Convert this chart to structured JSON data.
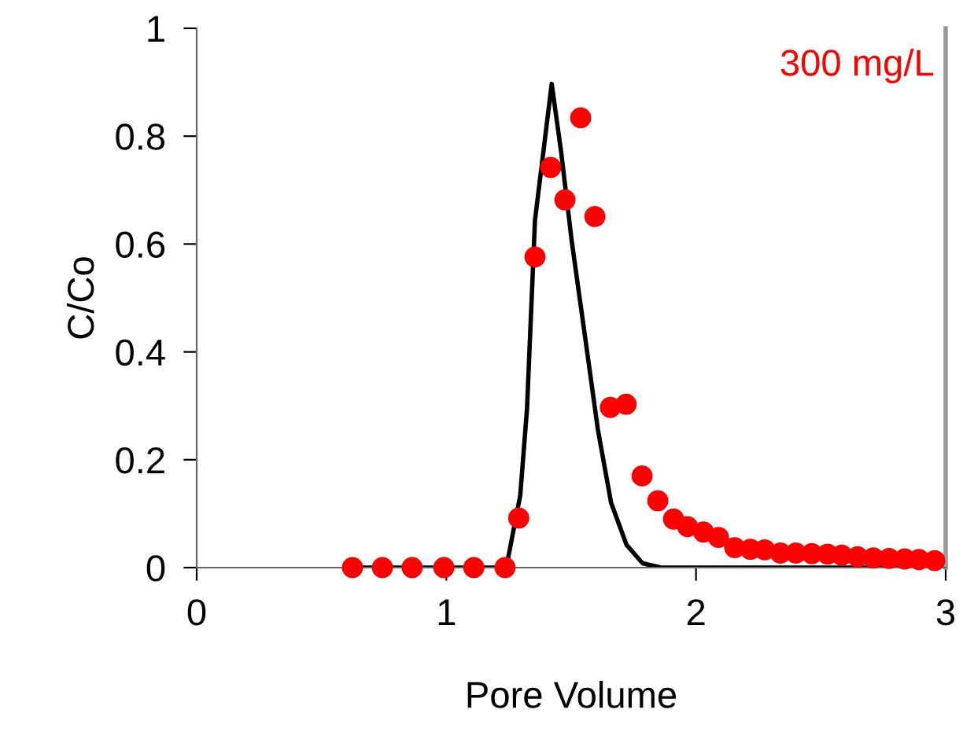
{
  "chart_data": {
    "type": "scatter",
    "xlabel": "Pore Volume",
    "ylabel": "C/Co",
    "annotations": [
      "300 mg/L"
    ],
    "xlim": [
      0,
      3
    ],
    "ylim": [
      0,
      1
    ],
    "xticks": [
      0,
      1,
      2,
      3
    ],
    "yticks": [
      0,
      0.2,
      0.4,
      0.6,
      0.8,
      1
    ],
    "grid": false,
    "legend": false,
    "series": [
      {
        "type": "line",
        "color": "#000000",
        "marker": "none",
        "line_style": "solid",
        "x": [
          0.62,
          1.24,
          1.296,
          1.323,
          1.355,
          1.422,
          1.46,
          1.502,
          1.555,
          1.607,
          1.66,
          1.722,
          1.786,
          1.86,
          2.0,
          2.5,
          3.0
        ],
        "values": [
          0,
          0,
          0.134,
          0.294,
          0.644,
          0.897,
          0.77,
          0.606,
          0.43,
          0.256,
          0.12,
          0.042,
          0.008,
          0,
          0,
          0,
          0
        ]
      },
      {
        "color": "#ff0000",
        "marker": "circle",
        "x": [
          0.624,
          0.744,
          0.863,
          0.99,
          1.11,
          1.235,
          1.29,
          1.355,
          1.418,
          1.475,
          1.538,
          1.595,
          1.657,
          1.72,
          1.784,
          1.847,
          1.91,
          1.966,
          2.03,
          2.09,
          2.155,
          2.218,
          2.275,
          2.338,
          2.4,
          2.464,
          2.527,
          2.584,
          2.647,
          2.71,
          2.773,
          2.836,
          2.893,
          2.956
        ],
        "values": [
          0,
          0,
          0,
          0,
          0,
          0,
          0.092,
          0.576,
          0.742,
          0.682,
          0.834,
          0.651,
          0.297,
          0.303,
          0.17,
          0.124,
          0.09,
          0.076,
          0.066,
          0.056,
          0.037,
          0.034,
          0.033,
          0.027,
          0.027,
          0.026,
          0.025,
          0.023,
          0.02,
          0.018,
          0.017,
          0.016,
          0.015,
          0.013
        ]
      }
    ]
  }
}
